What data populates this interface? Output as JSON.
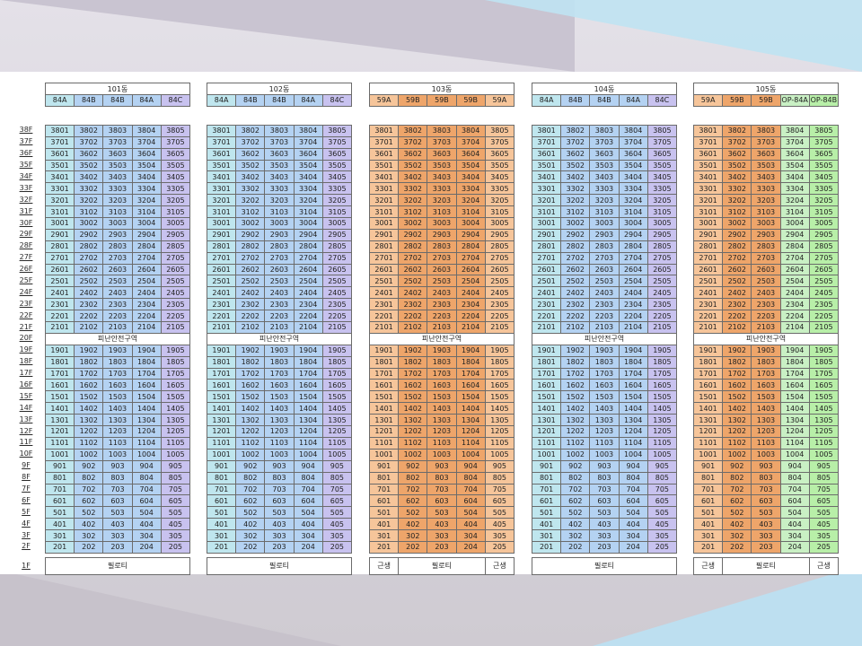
{
  "buildings": [
    {
      "name": "101동",
      "types": [
        {
          "label": "84A",
          "color": "#bfe6ee"
        },
        {
          "label": "84B",
          "color": "#b4d2f2"
        },
        {
          "label": "84B",
          "color": "#b4d2f2"
        },
        {
          "label": "84A",
          "color": "#b4d2f2"
        },
        {
          "label": "84C",
          "color": "#c8c2ef"
        }
      ],
      "ground": [
        "필로티"
      ]
    },
    {
      "name": "102동",
      "types": [
        {
          "label": "84A",
          "color": "#bfe6ee"
        },
        {
          "label": "84B",
          "color": "#b4d2f2"
        },
        {
          "label": "84B",
          "color": "#b4d2f2"
        },
        {
          "label": "84A",
          "color": "#b4d2f2"
        },
        {
          "label": "84C",
          "color": "#c8c2ef"
        }
      ],
      "ground": [
        "필로티"
      ]
    },
    {
      "name": "103동",
      "types": [
        {
          "label": "59A",
          "color": "#f6c59a"
        },
        {
          "label": "59B",
          "color": "#eea56a"
        },
        {
          "label": "59B",
          "color": "#eea56a"
        },
        {
          "label": "59B",
          "color": "#eea56a"
        },
        {
          "label": "59A",
          "color": "#f6c59a"
        }
      ],
      "ground": [
        "근생",
        "필로티",
        "근생"
      ]
    },
    {
      "name": "104동",
      "types": [
        {
          "label": "84A",
          "color": "#bfe6ee"
        },
        {
          "label": "84B",
          "color": "#b4d2f2"
        },
        {
          "label": "84B",
          "color": "#b4d2f2"
        },
        {
          "label": "84A",
          "color": "#b4d2f2"
        },
        {
          "label": "84C",
          "color": "#c8c2ef"
        }
      ],
      "ground": [
        "필로티"
      ]
    },
    {
      "name": "105동",
      "types": [
        {
          "label": "59A",
          "color": "#f6c59a"
        },
        {
          "label": "59B",
          "color": "#eea56a"
        },
        {
          "label": "59B",
          "color": "#eea56a"
        },
        {
          "label": "OP-84A",
          "color": "#c9f0c4"
        },
        {
          "label": "OP-84B",
          "color": "#b8efa8"
        }
      ],
      "ground": [
        "근생",
        "필로티",
        "근생"
      ]
    }
  ],
  "refuge_label": "피난안전구역",
  "refuge_floor_label": "20F",
  "ground_floor_label": "1F",
  "upper_floors": [
    38,
    37,
    36,
    35,
    34,
    33,
    32,
    31,
    30,
    29,
    28,
    27,
    26,
    25,
    24,
    23,
    22,
    21
  ],
  "lower_floors": [
    19,
    18,
    17,
    16,
    15,
    14,
    13,
    12,
    11,
    10,
    9,
    8,
    7,
    6,
    5,
    4,
    3,
    2
  ],
  "units_per_floor": 5
}
